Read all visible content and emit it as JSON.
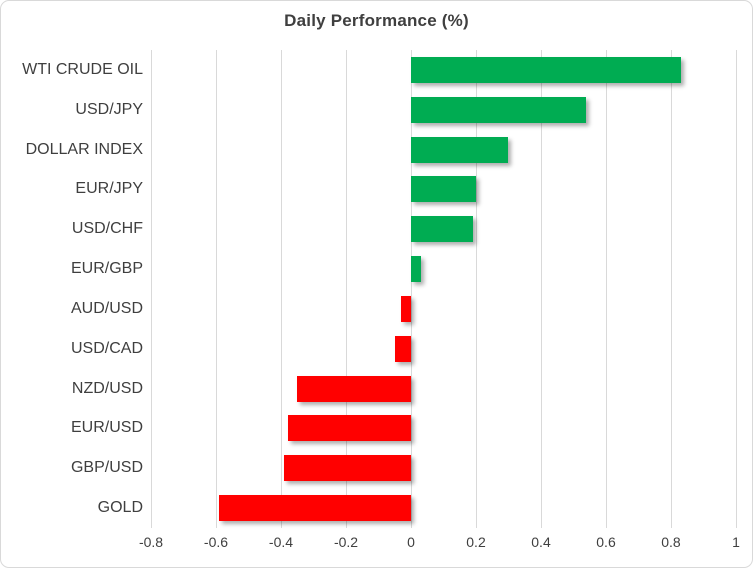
{
  "chart_data": {
    "type": "bar",
    "orientation": "horizontal",
    "title": "Daily Performance (%)",
    "categories": [
      "WTI CRUDE OIL",
      "USD/JPY",
      "DOLLAR INDEX",
      "EUR/JPY",
      "USD/CHF",
      "EUR/GBP",
      "AUD/USD",
      "USD/CAD",
      "NZD/USD",
      "EUR/USD",
      "GBP/USD",
      "GOLD"
    ],
    "values": [
      0.83,
      0.54,
      0.3,
      0.2,
      0.19,
      0.03,
      -0.03,
      -0.05,
      -0.35,
      -0.38,
      -0.39,
      -0.59
    ],
    "xlabel": "",
    "ylabel": "",
    "xlim": [
      -0.8,
      1.0
    ],
    "xticks": [
      -0.8,
      -0.6,
      -0.4,
      -0.2,
      0,
      0.2,
      0.4,
      0.6,
      0.8,
      1
    ],
    "xtick_labels": [
      "-0.8",
      "-0.6",
      "-0.4",
      "-0.2",
      "0",
      "0.2",
      "0.4",
      "0.6",
      "0.8",
      "1"
    ],
    "grid": "vertical-on",
    "legend": "none",
    "colors": {
      "positive": "#00AC52",
      "negative": "#FF0000",
      "gridline": "#D9D9D9",
      "text": "#3F3F3F",
      "background": "#FFFFFF",
      "frame_border": "#D9D9D9"
    }
  }
}
